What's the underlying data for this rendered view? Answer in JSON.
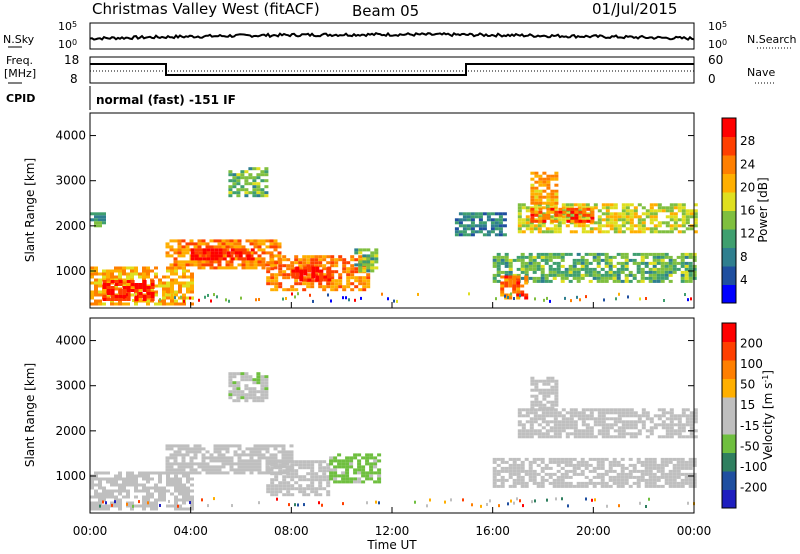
{
  "header": {
    "title": "Christmas Valley West (fitACF)",
    "beam": "Beam 05",
    "date": "01/Jul/2015"
  },
  "nsky_panel": {
    "left_label": "N.Sky",
    "left_ticks": [
      "10^5",
      "10^0"
    ],
    "right_label": "N.Search",
    "right_ticks": [
      "10^5",
      "10^0"
    ]
  },
  "freq_panel": {
    "left_label_1": "Freq.",
    "left_label_2": "[MHz]",
    "left_ticks": [
      "18",
      "8"
    ],
    "right_label": "Nave",
    "right_ticks": [
      "60",
      "0"
    ]
  },
  "cpid": {
    "label": "CPID",
    "value": "normal (fast) -151 IF"
  },
  "colors": {
    "power_scale": [
      "#0000ff",
      "#1f4f9f",
      "#2f7f8f",
      "#3f9f6f",
      "#7fbf3f",
      "#dfdf1f",
      "#ffaf00",
      "#ff7f00",
      "#ff3f00",
      "#ff0000"
    ],
    "velocity_scale": [
      "#1f1fbf",
      "#1f4fa0",
      "#2f7f5f",
      "#6fbf3f",
      "#bfbfbf",
      "#bfbfbf",
      "#ffaf00",
      "#ff7f00",
      "#ff3f00",
      "#ff0000"
    ]
  },
  "chart_data": [
    {
      "type": "heatmap",
      "ylabel": "Slant Range [km]",
      "xlabel": "Time UT",
      "yticks": [
        "1000",
        "2000",
        "3000",
        "4000"
      ],
      "xticks": [
        "00:00",
        "04:00",
        "08:00",
        "12:00",
        "16:00",
        "20:00",
        "00:00"
      ],
      "xlim_hours": [
        0,
        24
      ],
      "ylim_km": [
        180,
        4500
      ],
      "colorbar": {
        "label": "Power [dB]",
        "ticks": [
          "28",
          "24",
          "20",
          "16",
          "12",
          "8",
          "4"
        ],
        "range": [
          0,
          30
        ]
      },
      "regions": [
        {
          "t0": 0.0,
          "t1": 4.0,
          "r0": 300,
          "r1": 1100,
          "value": 20
        },
        {
          "t0": 0.5,
          "t1": 2.5,
          "r0": 400,
          "r1": 800,
          "value": 28
        },
        {
          "t0": 3.0,
          "t1": 7.5,
          "r0": 1100,
          "r1": 1700,
          "value": 22
        },
        {
          "t0": 4.0,
          "t1": 6.5,
          "r0": 1250,
          "r1": 1500,
          "value": 28
        },
        {
          "t0": 7.0,
          "t1": 11.0,
          "r0": 600,
          "r1": 1350,
          "value": 22
        },
        {
          "t0": 8.0,
          "t1": 9.5,
          "r0": 800,
          "r1": 1100,
          "value": 28
        },
        {
          "t0": 10.5,
          "t1": 11.3,
          "r0": 1000,
          "r1": 1500,
          "value": 12
        },
        {
          "t0": 5.5,
          "t1": 7.0,
          "r0": 2700,
          "r1": 3300,
          "value": 12
        },
        {
          "t0": 0.0,
          "t1": 0.5,
          "r0": 2000,
          "r1": 2300,
          "value": 10
        },
        {
          "t0": 14.5,
          "t1": 16.5,
          "r0": 1800,
          "r1": 2300,
          "value": 8
        },
        {
          "t0": 16.0,
          "t1": 24.0,
          "r0": 800,
          "r1": 1400,
          "value": 12
        },
        {
          "t0": 16.3,
          "t1": 17.3,
          "r0": 400,
          "r1": 900,
          "value": 24
        },
        {
          "t0": 17.0,
          "t1": 24.0,
          "r0": 1900,
          "r1": 2500,
          "value": 16
        },
        {
          "t0": 17.5,
          "t1": 20.0,
          "r0": 2100,
          "r1": 2400,
          "value": 24
        },
        {
          "t0": 17.5,
          "t1": 18.5,
          "r0": 2500,
          "r1": 3200,
          "value": 20
        }
      ]
    },
    {
      "type": "heatmap",
      "ylabel": "Slant Range [km]",
      "xlabel": "Time UT",
      "yticks": [
        "1000",
        "2000",
        "3000",
        "4000"
      ],
      "xticks": [
        "00:00",
        "04:00",
        "08:00",
        "12:00",
        "16:00",
        "20:00",
        "00:00"
      ],
      "xlim_hours": [
        0,
        24
      ],
      "ylim_km": [
        180,
        4500
      ],
      "colorbar": {
        "label": "Velocity [m s-1]",
        "ticks": [
          "200",
          "100",
          "50",
          "15",
          "-15",
          "-50",
          "-100",
          "-200"
        ],
        "range": [
          -250,
          250
        ]
      },
      "regions": [
        {
          "t0": 0.0,
          "t1": 4.0,
          "r0": 300,
          "r1": 1100,
          "value": 0
        },
        {
          "t0": 3.0,
          "t1": 8.0,
          "r0": 1100,
          "r1": 1700,
          "value": 0
        },
        {
          "t0": 7.0,
          "t1": 9.5,
          "r0": 600,
          "r1": 1350,
          "value": 0
        },
        {
          "t0": 9.5,
          "t1": 11.5,
          "r0": 900,
          "r1": 1500,
          "value": -60
        },
        {
          "t0": 5.5,
          "t1": 7.0,
          "r0": 2700,
          "r1": 3300,
          "value": -40
        },
        {
          "t0": 16.0,
          "t1": 24.0,
          "r0": 800,
          "r1": 1400,
          "value": 0
        },
        {
          "t0": 17.0,
          "t1": 24.0,
          "r0": 1900,
          "r1": 2500,
          "value": 0
        },
        {
          "t0": 17.5,
          "t1": 18.5,
          "r0": 2500,
          "r1": 3200,
          "value": 0
        }
      ]
    }
  ]
}
